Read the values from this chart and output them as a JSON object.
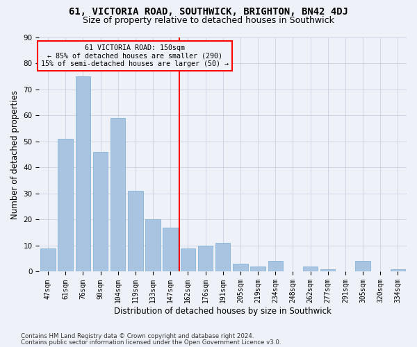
{
  "title": "61, VICTORIA ROAD, SOUTHWICK, BRIGHTON, BN42 4DJ",
  "subtitle": "Size of property relative to detached houses in Southwick",
  "xlabel": "Distribution of detached houses by size in Southwick",
  "ylabel": "Number of detached properties",
  "footnote1": "Contains HM Land Registry data © Crown copyright and database right 2024.",
  "footnote2": "Contains public sector information licensed under the Open Government Licence v3.0.",
  "categories": [
    "47sqm",
    "61sqm",
    "76sqm",
    "90sqm",
    "104sqm",
    "119sqm",
    "133sqm",
    "147sqm",
    "162sqm",
    "176sqm",
    "191sqm",
    "205sqm",
    "219sqm",
    "234sqm",
    "248sqm",
    "262sqm",
    "277sqm",
    "291sqm",
    "305sqm",
    "320sqm",
    "334sqm"
  ],
  "values": [
    9,
    51,
    75,
    46,
    59,
    31,
    20,
    17,
    9,
    10,
    11,
    3,
    2,
    4,
    0,
    2,
    1,
    0,
    4,
    0,
    1
  ],
  "bar_color": "#a8c4e0",
  "bar_edge_color": "#7aadd4",
  "redline_index": 7,
  "annotation_line1": "61 VICTORIA ROAD: 150sqm",
  "annotation_line2": "← 85% of detached houses are smaller (290)",
  "annotation_line3": "15% of semi-detached houses are larger (50) →",
  "ylim": [
    0,
    90
  ],
  "yticks": [
    0,
    10,
    20,
    30,
    40,
    50,
    60,
    70,
    80,
    90
  ],
  "bg_color": "#eef2f8",
  "grid_color": "#c8d0e0",
  "title_fontsize": 10,
  "subtitle_fontsize": 9,
  "axis_label_fontsize": 8.5,
  "tick_fontsize": 7
}
